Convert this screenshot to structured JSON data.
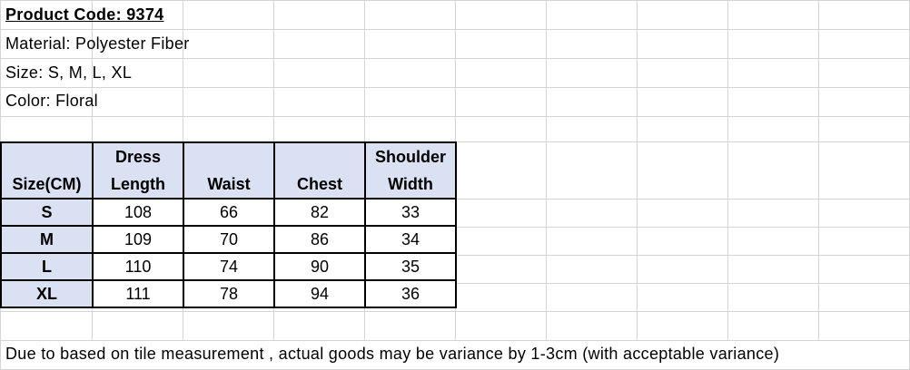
{
  "info": {
    "product_code": "Product Code: 9374",
    "material": "Material: Polyester Fiber",
    "size": "Size:  S, M, L, XL",
    "color": "Color: Floral"
  },
  "table": {
    "headers": [
      [
        "",
        "Size(CM)"
      ],
      [
        "Dress",
        "Length"
      ],
      [
        "",
        "Waist"
      ],
      [
        "",
        "Chest"
      ],
      [
        "Shoulder",
        "Width"
      ]
    ],
    "rows": [
      [
        "S",
        "108",
        "66",
        "82",
        "33"
      ],
      [
        "M",
        "109",
        "70",
        "86",
        "34"
      ],
      [
        "L",
        "110",
        "74",
        "90",
        "35"
      ],
      [
        "XL",
        "111",
        "78",
        "94",
        "36"
      ]
    ]
  },
  "note": "Due to based on tile measurement , actual goods may be variance by 1-3cm (with acceptable variance)",
  "colors": {
    "header_fill": "#d9e1f2",
    "grid": "#d4d4d4"
  }
}
